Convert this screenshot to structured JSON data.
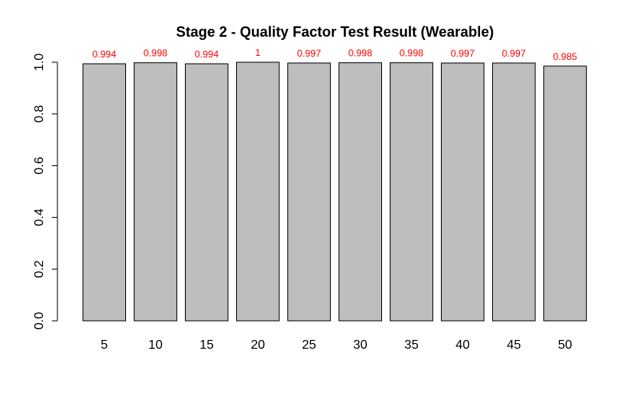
{
  "chart_data": {
    "type": "bar",
    "title": "Stage 2 - Quality Factor Test Result (Wearable)",
    "xlabel": "",
    "ylabel": "",
    "categories": [
      "5",
      "10",
      "15",
      "20",
      "25",
      "30",
      "35",
      "40",
      "45",
      "50"
    ],
    "values": [
      0.994,
      0.998,
      0.994,
      1,
      0.997,
      0.998,
      0.998,
      0.997,
      0.997,
      0.985
    ],
    "data_labels": [
      "0.994",
      "0.998",
      "0.994",
      "1",
      "0.997",
      "0.998",
      "0.998",
      "0.997",
      "0.997",
      "0.985"
    ],
    "ylim": [
      0,
      1
    ],
    "yticks": [
      0,
      0.2,
      0.4,
      0.6,
      0.8,
      1
    ],
    "ytick_labels": [
      "0.0",
      "0.2",
      "0.4",
      "0.6",
      "0.8",
      "1.0"
    ],
    "grid": false,
    "bar_color": "#bebebe",
    "label_color": "#ff0000"
  }
}
